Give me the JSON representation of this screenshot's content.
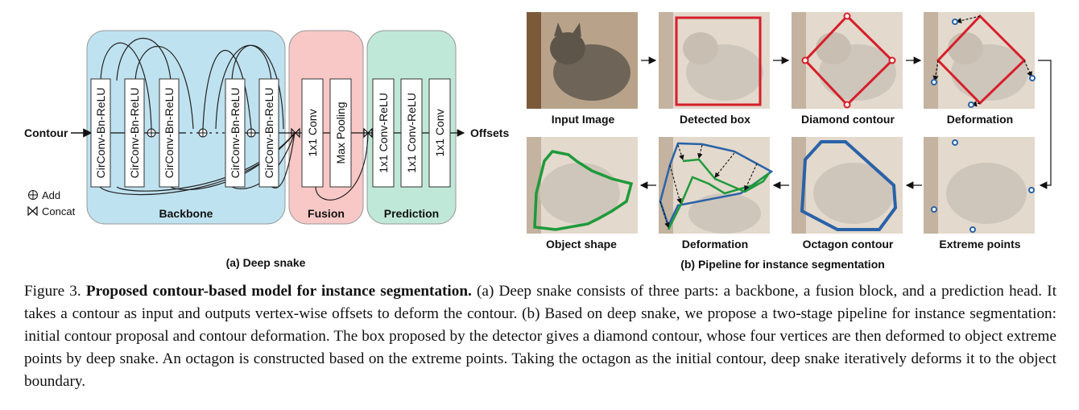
{
  "diagram": {
    "input_label": "Contour",
    "output_label": "Offsets",
    "backbone": {
      "label": "Backbone",
      "colour": "#bfe2f0",
      "layers": [
        "CirConv-Bn-ReLU",
        "CirConv-Bn-ReLU",
        "CirConv-Bn-ReLU",
        "CirConv-Bn-ReLU",
        "CirConv-Bn-ReLU"
      ]
    },
    "fusion": {
      "label": "Fusion",
      "colour": "#f8c8c6",
      "layers": [
        "1x1 Conv",
        "Max Pooling"
      ]
    },
    "prediction": {
      "label": "Prediction",
      "colour": "#bfe8d8",
      "layers": [
        "1x1 Conv-ReLU",
        "1x1 Conv-ReLU",
        "1x1 Conv"
      ]
    },
    "legend": {
      "add": "Add",
      "concat": "Concat"
    },
    "subcaption": "(a) Deep snake"
  },
  "pipeline": {
    "panels_top": [
      "Input Image",
      "Detected box",
      "Diamond contour",
      "Deformation"
    ],
    "panels_bottom": [
      "Object shape",
      "Deformation",
      "Octagon contour",
      "Extreme points"
    ],
    "subcaption": "(b) Pipeline for instance segmentation",
    "colours": {
      "box": "#d61f2a",
      "contour_blue": "#2a62a8",
      "shape_green": "#1e9a3b"
    }
  },
  "caption": {
    "figure_label": "Figure 3.",
    "title": "Proposed contour-based model for instance segmentation.",
    "body": "(a) Deep snake consists of three parts: a backbone, a fusion block, and a prediction head. It takes a contour as input and outputs vertex-wise offsets to deform the contour. (b) Based on deep snake, we propose a two-stage pipeline for instance segmentation: initial contour proposal and contour deformation. The box proposed by the detector gives a diamond contour, whose four vertices are then deformed to object extreme points by deep snake. An octagon is constructed based on the extreme points. Taking the octagon as the initial contour, deep snake iteratively deforms it to the object boundary."
  }
}
